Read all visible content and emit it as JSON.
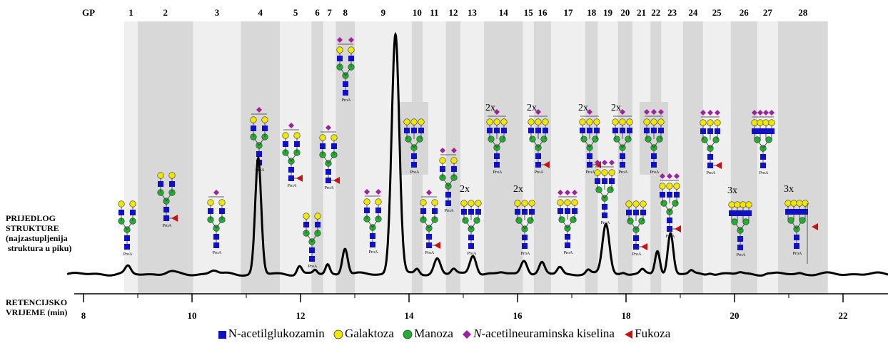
{
  "header": {
    "gp_label": "GP"
  },
  "side_labels": {
    "structure_line1": "PRIJEDLOG",
    "structure_line2": "STRUKTURE",
    "structure_line3": "(najzastupljenija",
    "structure_line4": " struktura u piku)",
    "time_line1": "RETENCIJSKO",
    "time_line2": "VRIJEME (min)"
  },
  "legend": [
    {
      "symbol": "square",
      "color": "#1010c8",
      "text": "N-acetilglukozamin"
    },
    {
      "symbol": "circle",
      "color": "#f0e600",
      "text": "Galaktoza"
    },
    {
      "symbol": "circle",
      "color": "#20b030",
      "text": "Manoza"
    },
    {
      "symbol": "diamond",
      "color": "#a020a0",
      "italic_prefix": "N",
      "text": "-acetilneuraminska kiselina"
    },
    {
      "symbol": "triangle",
      "color": "#cc1010",
      "text": "Fukoza"
    }
  ],
  "multiplier_labels": [
    "2x",
    "2x",
    "2x",
    "2x",
    "2x",
    "2x",
    "3x",
    "3x"
  ],
  "glycan_tag": "ProA",
  "chart_data": {
    "type": "line",
    "title": "",
    "xlabel": "RETENCIJSKO VRIJEME (min)",
    "ylabel": "",
    "xlim": [
      7.7,
      22.9
    ],
    "x_ticks": [
      8,
      10,
      12,
      14,
      16,
      18,
      20,
      22
    ],
    "grid": false,
    "legend_position": "bottom",
    "peak_labels": [
      "1",
      "2",
      "3",
      "4",
      "5",
      "6",
      "7",
      "8",
      "9",
      "10",
      "11",
      "12",
      "13",
      "14",
      "15",
      "16",
      "17",
      "18",
      "19",
      "20",
      "21",
      "22",
      "23",
      "24",
      "25",
      "26",
      "27",
      "28"
    ],
    "peak_bands": [
      {
        "gp": "1",
        "x0": 8.75,
        "x1": 9.0,
        "shade": "light"
      },
      {
        "gp": "2",
        "x0": 9.0,
        "x1": 10.02,
        "shade": "dark"
      },
      {
        "gp": "3",
        "x0": 10.02,
        "x1": 10.9,
        "shade": "light"
      },
      {
        "gp": "4",
        "x0": 10.9,
        "x1": 11.62,
        "shade": "dark"
      },
      {
        "gp": "5",
        "x0": 11.62,
        "x1": 12.2,
        "shade": "light"
      },
      {
        "gp": "6",
        "x0": 12.2,
        "x1": 12.42,
        "shade": "dark"
      },
      {
        "gp": "7",
        "x0": 12.42,
        "x1": 12.65,
        "shade": "light"
      },
      {
        "gp": "8",
        "x0": 12.65,
        "x1": 13.0,
        "shade": "dark"
      },
      {
        "gp": "9",
        "x0": 13.0,
        "x1": 14.05,
        "shade": "light"
      },
      {
        "gp": "10",
        "x0": 14.05,
        "x1": 14.25,
        "shade": "dark"
      },
      {
        "gp": "11",
        "x0": 14.25,
        "x1": 14.68,
        "shade": "light"
      },
      {
        "gp": "12",
        "x0": 14.68,
        "x1": 14.95,
        "shade": "dark"
      },
      {
        "gp": "13",
        "x0": 14.95,
        "x1": 15.38,
        "shade": "light"
      },
      {
        "gp": "14",
        "x0": 15.38,
        "x1": 16.1,
        "shade": "dark"
      },
      {
        "gp": "15",
        "x0": 16.1,
        "x1": 16.3,
        "shade": "light"
      },
      {
        "gp": "16",
        "x0": 16.3,
        "x1": 16.62,
        "shade": "dark"
      },
      {
        "gp": "17",
        "x0": 16.62,
        "x1": 17.25,
        "shade": "light"
      },
      {
        "gp": "18",
        "x0": 17.25,
        "x1": 17.48,
        "shade": "dark"
      },
      {
        "gp": "19",
        "x0": 17.48,
        "x1": 17.85,
        "shade": "light"
      },
      {
        "gp": "20",
        "x0": 17.85,
        "x1": 18.12,
        "shade": "dark"
      },
      {
        "gp": "21",
        "x0": 18.12,
        "x1": 18.45,
        "shade": "light"
      },
      {
        "gp": "22",
        "x0": 18.45,
        "x1": 18.65,
        "shade": "dark"
      },
      {
        "gp": "23",
        "x0": 18.65,
        "x1": 19.05,
        "shade": "light"
      },
      {
        "gp": "24",
        "x0": 19.05,
        "x1": 19.42,
        "shade": "dark"
      },
      {
        "gp": "25",
        "x0": 19.42,
        "x1": 19.93,
        "shade": "light"
      },
      {
        "gp": "26",
        "x0": 19.93,
        "x1": 20.42,
        "shade": "dark"
      },
      {
        "gp": "27",
        "x0": 20.42,
        "x1": 20.8,
        "shade": "light"
      },
      {
        "gp": "28",
        "x0": 20.8,
        "x1": 21.72,
        "shade": "dark"
      }
    ],
    "series": [
      {
        "baseline": 0.02,
        "peaks": [
          {
            "gp": "1",
            "rt": 8.82,
            "height": 0.03,
            "width": 0.05
          },
          {
            "gp": "2",
            "rt": 9.6,
            "height": 0.008,
            "width": 0.08
          },
          {
            "gp": "3",
            "rt": 10.4,
            "height": 0.015,
            "width": 0.07
          },
          {
            "gp": "4",
            "rt": 11.22,
            "height": 0.48,
            "width": 0.055
          },
          {
            "gp": "5",
            "rt": 11.98,
            "height": 0.035,
            "width": 0.045
          },
          {
            "gp": "6",
            "rt": 12.27,
            "height": 0.015,
            "width": 0.035
          },
          {
            "gp": "7",
            "rt": 12.5,
            "height": 0.04,
            "width": 0.04
          },
          {
            "gp": "8",
            "rt": 12.82,
            "height": 0.11,
            "width": 0.05
          },
          {
            "gp": "9",
            "rt": 13.75,
            "height": 1.0,
            "width": 0.07
          },
          {
            "gp": "10",
            "rt": 14.15,
            "height": 0.02,
            "width": 0.04
          },
          {
            "gp": "11",
            "rt": 14.52,
            "height": 0.065,
            "width": 0.06
          },
          {
            "gp": "12",
            "rt": 14.82,
            "height": 0.02,
            "width": 0.045
          },
          {
            "gp": "13",
            "rt": 15.18,
            "height": 0.08,
            "width": 0.06
          },
          {
            "gp": "14",
            "rt": 15.7,
            "height": 0.006,
            "width": 0.06
          },
          {
            "gp": "15",
            "rt": 16.12,
            "height": 0.06,
            "width": 0.06
          },
          {
            "gp": "16",
            "rt": 16.45,
            "height": 0.045,
            "width": 0.05
          },
          {
            "gp": "17",
            "rt": 16.78,
            "height": 0.03,
            "width": 0.05
          },
          {
            "gp": "18",
            "rt": 17.3,
            "height": 0.015,
            "width": 0.04
          },
          {
            "gp": "19",
            "rt": 17.63,
            "height": 0.21,
            "width": 0.065
          },
          {
            "gp": "20",
            "rt": 17.95,
            "height": 0.006,
            "width": 0.04
          },
          {
            "gp": "21",
            "rt": 18.3,
            "height": 0.015,
            "width": 0.04
          },
          {
            "gp": "22",
            "rt": 18.58,
            "height": 0.1,
            "width": 0.045
          },
          {
            "gp": "23",
            "rt": 18.82,
            "height": 0.17,
            "width": 0.05
          },
          {
            "gp": "24",
            "rt": 19.2,
            "height": 0.012,
            "width": 0.04
          },
          {
            "gp": "25",
            "rt": 19.55,
            "height": 0.008,
            "width": 0.05
          },
          {
            "gp": "26",
            "rt": 20.1,
            "height": 0.006,
            "width": 0.05
          },
          {
            "gp": "27",
            "rt": 20.6,
            "height": 0.004,
            "width": 0.05
          },
          {
            "gp": "28",
            "rt": 21.2,
            "height": 0.004,
            "width": 0.05
          }
        ]
      }
    ]
  }
}
